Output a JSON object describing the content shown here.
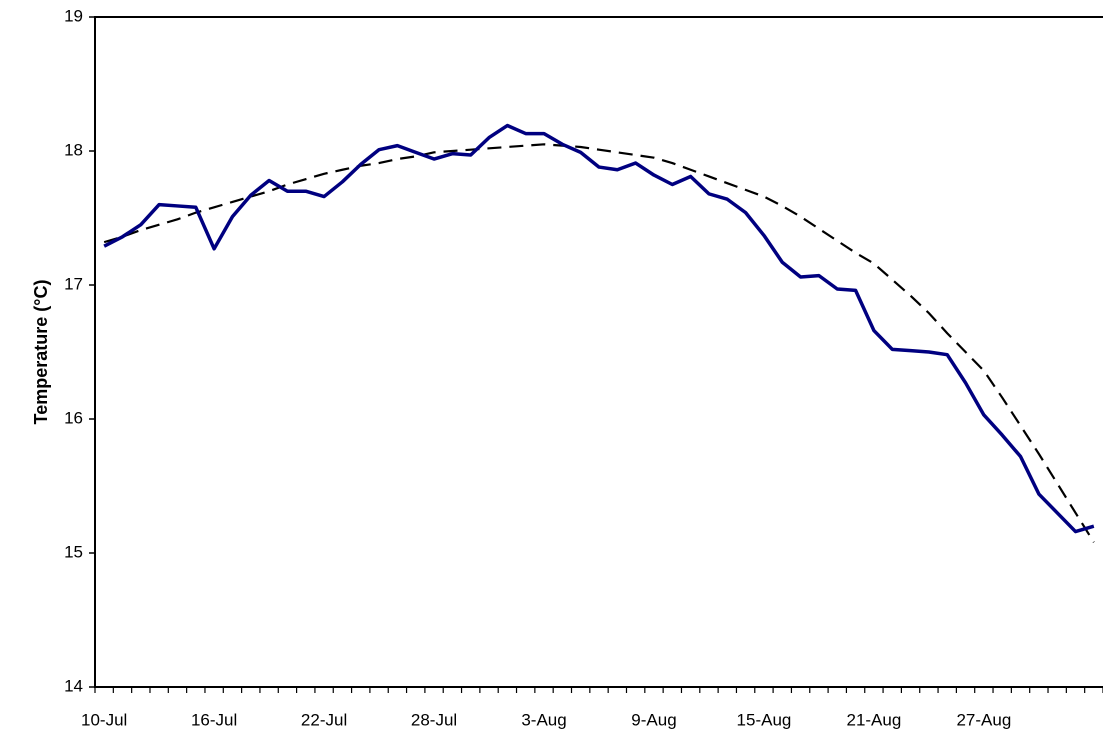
{
  "chart_data": {
    "type": "line",
    "y_label": "Temperature (°C)",
    "categories": [
      "10-Jul",
      null,
      null,
      null,
      null,
      null,
      "16-Jul",
      null,
      null,
      null,
      null,
      null,
      "22-Jul",
      null,
      null,
      null,
      null,
      null,
      "28-Jul",
      null,
      null,
      null,
      null,
      null,
      "3-Aug",
      null,
      null,
      null,
      null,
      null,
      "9-Aug",
      null,
      null,
      null,
      null,
      null,
      "15-Aug",
      null,
      null,
      null,
      null,
      null,
      "21-Aug",
      null,
      null,
      null,
      null,
      null,
      "27-Aug",
      null,
      null,
      null,
      null,
      null,
      null
    ],
    "series": [
      {
        "color": "#000080",
        "style": "solid",
        "values": [
          17.29,
          17.36,
          17.45,
          17.6,
          17.59,
          17.58,
          17.27,
          17.51,
          17.67,
          17.78,
          17.7,
          17.7,
          17.66,
          17.77,
          17.9,
          18.01,
          18.04,
          17.99,
          17.94,
          17.98,
          17.97,
          18.1,
          18.19,
          18.13,
          18.13,
          18.05,
          17.99,
          17.88,
          17.86,
          17.91,
          17.82,
          17.75,
          17.81,
          17.68,
          17.64,
          17.54,
          17.37,
          17.17,
          17.06,
          17.07,
          16.97,
          16.96,
          16.66,
          16.52,
          16.51,
          16.5,
          16.48,
          16.27,
          16.03,
          15.88,
          15.72,
          15.44,
          15.3,
          15.16,
          15.2
        ]
      },
      {
        "color": "#000000",
        "style": "dashed",
        "values": [
          17.32,
          17.36,
          17.41,
          17.45,
          17.49,
          17.54,
          17.58,
          17.62,
          17.66,
          17.7,
          17.75,
          17.79,
          17.83,
          17.86,
          17.89,
          17.91,
          17.94,
          17.96,
          17.99,
          18.0,
          18.01,
          18.02,
          18.03,
          18.04,
          18.05,
          18.04,
          18.03,
          18.01,
          17.99,
          17.97,
          17.95,
          17.91,
          17.86,
          17.81,
          17.76,
          17.71,
          17.66,
          17.59,
          17.51,
          17.42,
          17.33,
          17.24,
          17.16,
          17.04,
          16.92,
          16.79,
          16.64,
          16.5,
          16.36,
          16.16,
          15.95,
          15.74,
          15.52,
          15.3,
          15.08
        ]
      }
    ],
    "ylim": [
      14,
      19
    ],
    "yticks": [
      14,
      15,
      16,
      17,
      18,
      19
    ],
    "grid": false
  }
}
